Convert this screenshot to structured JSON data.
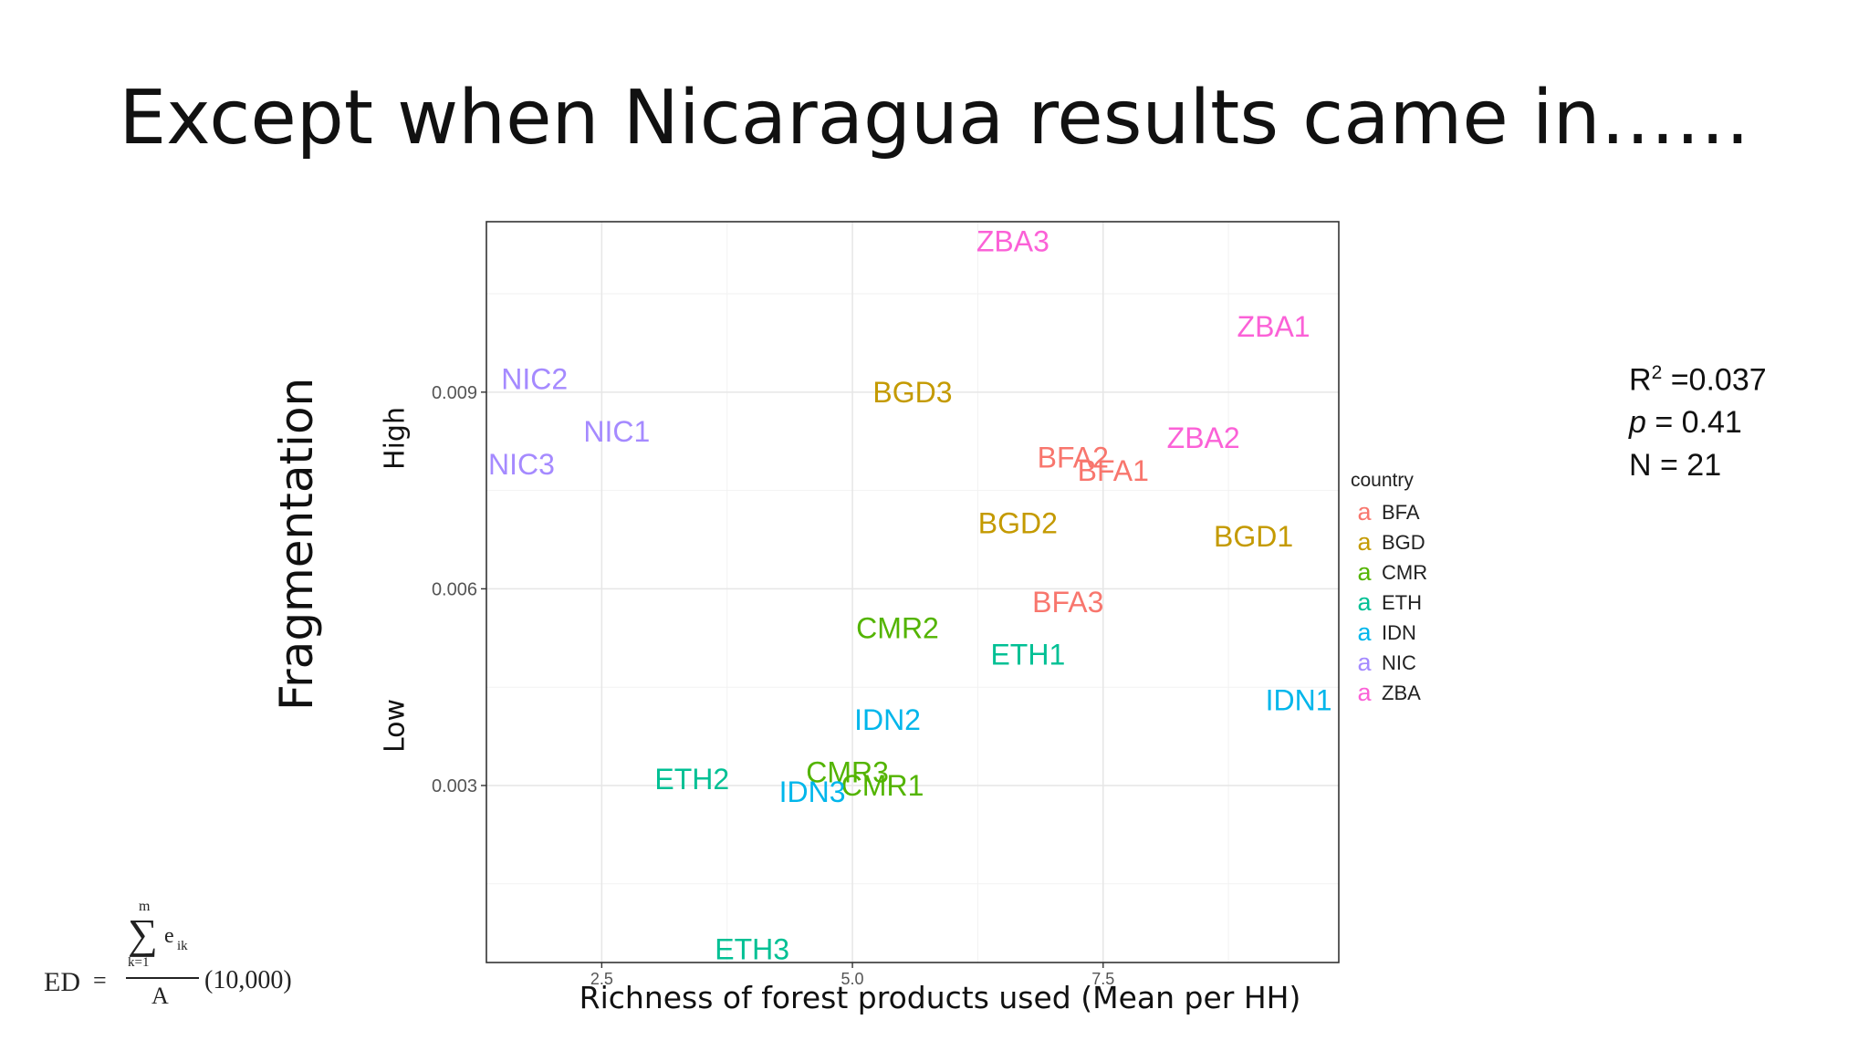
{
  "slide": {
    "title": "Except when Nicaragua results came in……",
    "ylabel_main": "Fragmentation",
    "ylabel_high": "High",
    "ylabel_low": "Low",
    "stats": {
      "r2_label": "R",
      "r2_sup": "2",
      "r2_value": " =0.037",
      "p_label": "p",
      "p_value": " =  0.41",
      "n_text": "N = 21"
    },
    "formula": {
      "lhs": "ED",
      "eq": "=",
      "sum_top": "m",
      "sum_sym": "∑",
      "sum_term": "e",
      "sum_sub": "ik",
      "sum_bottom": "k=1",
      "denominator": "A",
      "factor": "(10,000)"
    }
  },
  "chart_data": {
    "type": "scatter",
    "title": "",
    "xlabel": "Richness of forest products used (Mean per HH)",
    "ylabel": "",
    "xlim": [
      1.35,
      9.85
    ],
    "ylim": [
      0.0003,
      0.0116
    ],
    "x_ticks": [
      2.5,
      5.0,
      7.5
    ],
    "x_tick_labels": [
      "2.5",
      "5.0",
      "7.5"
    ],
    "y_ticks": [
      0.003,
      0.006,
      0.009
    ],
    "y_tick_labels": [
      "0.003",
      "0.006",
      "0.009"
    ],
    "grid": true,
    "legend": {
      "title": "country",
      "placement": "right",
      "key_glyph": "a"
    },
    "series": [
      {
        "name": "BFA",
        "color": "#F8766D",
        "points": [
          {
            "label": "BFA2",
            "x": 7.2,
            "y": 0.008
          },
          {
            "label": "BFA1",
            "x": 7.6,
            "y": 0.0078
          },
          {
            "label": "BFA3",
            "x": 7.15,
            "y": 0.0058
          }
        ]
      },
      {
        "name": "BGD",
        "color": "#C49A00",
        "points": [
          {
            "label": "BGD3",
            "x": 5.6,
            "y": 0.009
          },
          {
            "label": "BGD2",
            "x": 6.65,
            "y": 0.007
          },
          {
            "label": "BGD1",
            "x": 9.0,
            "y": 0.0068
          }
        ]
      },
      {
        "name": "CMR",
        "color": "#53B400",
        "points": [
          {
            "label": "CMR2",
            "x": 5.45,
            "y": 0.0054
          },
          {
            "label": "CMR3",
            "x": 4.95,
            "y": 0.0032
          },
          {
            "label": "CMR1",
            "x": 5.3,
            "y": 0.003
          }
        ]
      },
      {
        "name": "ETH",
        "color": "#00C094",
        "points": [
          {
            "label": "ETH1",
            "x": 6.75,
            "y": 0.005
          },
          {
            "label": "ETH2",
            "x": 3.4,
            "y": 0.0031
          },
          {
            "label": "ETH3",
            "x": 4.0,
            "y": 0.0005
          }
        ]
      },
      {
        "name": "IDN",
        "color": "#00B6EB",
        "points": [
          {
            "label": "IDN1",
            "x": 9.45,
            "y": 0.0043
          },
          {
            "label": "IDN2",
            "x": 5.35,
            "y": 0.004
          },
          {
            "label": "IDN3",
            "x": 4.6,
            "y": 0.0029
          }
        ]
      },
      {
        "name": "NIC",
        "color": "#A58AFF",
        "points": [
          {
            "label": "NIC2",
            "x": 1.83,
            "y": 0.0092
          },
          {
            "label": "NIC1",
            "x": 2.65,
            "y": 0.0084
          },
          {
            "label": "NIC3",
            "x": 1.7,
            "y": 0.0079
          }
        ]
      },
      {
        "name": "ZBA",
        "color": "#FB61D7",
        "points": [
          {
            "label": "ZBA3",
            "x": 6.6,
            "y": 0.0113
          },
          {
            "label": "ZBA1",
            "x": 9.2,
            "y": 0.01
          },
          {
            "label": "ZBA2",
            "x": 8.5,
            "y": 0.0083
          }
        ]
      }
    ]
  }
}
